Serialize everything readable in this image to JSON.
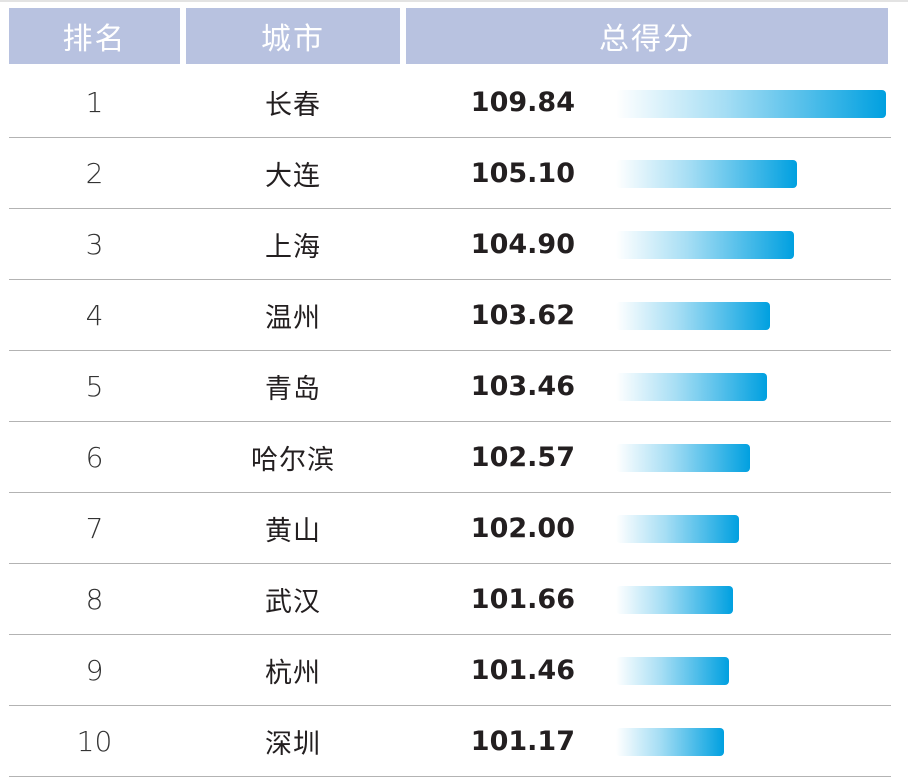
{
  "header": {
    "rank": "排名",
    "city": "城市",
    "score": "总得分"
  },
  "colors": {
    "header_bg": "#b8c2e0",
    "bar": "#00a0e0"
  },
  "chart_data": {
    "type": "table",
    "columns": [
      "排名",
      "城市",
      "总得分"
    ],
    "rows": [
      {
        "rank": "1",
        "city": "长春",
        "score": "109.84",
        "value": 109.84
      },
      {
        "rank": "2",
        "city": "大连",
        "score": "105.10",
        "value": 105.1
      },
      {
        "rank": "3",
        "city": "上海",
        "score": "104.90",
        "value": 104.9
      },
      {
        "rank": "4",
        "city": "温州",
        "score": "103.62",
        "value": 103.62
      },
      {
        "rank": "5",
        "city": "青岛",
        "score": "103.46",
        "value": 103.46
      },
      {
        "rank": "6",
        "city": "哈尔滨",
        "score": "102.57",
        "value": 102.57
      },
      {
        "rank": "7",
        "city": "黄山",
        "score": "102.00",
        "value": 102.0
      },
      {
        "rank": "8",
        "city": "武汉",
        "score": "101.66",
        "value": 101.66
      },
      {
        "rank": "9",
        "city": "杭州",
        "score": "101.46",
        "value": 101.46
      },
      {
        "rank": "10",
        "city": "深圳",
        "score": "101.17",
        "value": 101.17
      }
    ]
  }
}
